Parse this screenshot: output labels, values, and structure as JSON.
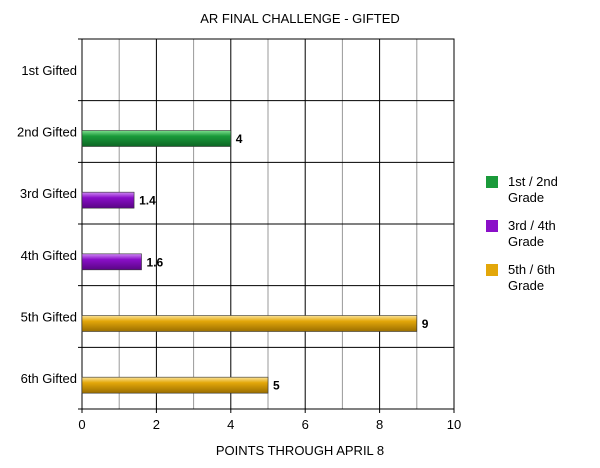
{
  "chart_data": {
    "type": "bar",
    "orientation": "horizontal",
    "title": "AR FINAL CHALLENGE - GIFTED",
    "xlabel": "POINTS THROUGH APRIL 8",
    "ylabel": "",
    "xlim": [
      0,
      10
    ],
    "x_ticks": [
      "0",
      "2",
      "4",
      "6",
      "8",
      "10"
    ],
    "grid": true,
    "legend_position": "right",
    "categories": [
      "1st Gifted",
      "2nd Gifted",
      "3rd Gifted",
      "4th Gifted",
      "5th Gifted",
      "6th Gifted"
    ],
    "bars": [
      {
        "category": "1st Gifted",
        "value": null,
        "label": "",
        "series": 0
      },
      {
        "category": "2nd Gifted",
        "value": 4,
        "label": "4",
        "series": 0
      },
      {
        "category": "3rd Gifted",
        "value": 1.4,
        "label": "1.4",
        "series": 1
      },
      {
        "category": "4th Gifted",
        "value": 1.6,
        "label": "1.6",
        "series": 1
      },
      {
        "category": "5th Gifted",
        "value": 9,
        "label": "9",
        "series": 2
      },
      {
        "category": "6th Gifted",
        "value": 5,
        "label": "5",
        "series": 2
      }
    ],
    "series": [
      {
        "name": "1st / 2nd Grade",
        "color": "#1a9a3a"
      },
      {
        "name": "3rd / 4th Grade",
        "color": "#8a0fc8"
      },
      {
        "name": "5th / 6th Grade",
        "color": "#e3a70a"
      }
    ]
  }
}
